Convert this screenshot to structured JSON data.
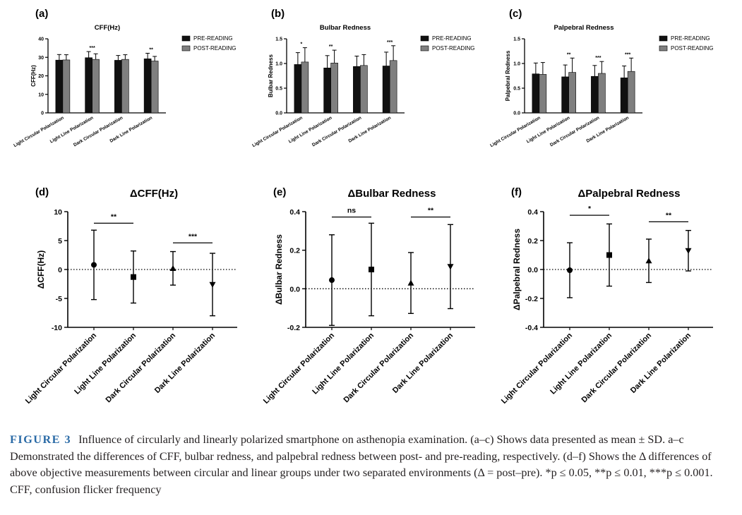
{
  "figure_label": "FIGURE 3",
  "caption_text": "Influence of circularly and linearly polarized smartphone on asthenopia examination. (a–c) Shows data presented as mean ± SD. a–c Demonstrated the differences of CFF, bulbar redness, and palpebral redness between post- and pre-reading, respectively. (d–f) Shows the Δ differences of above objective measurements between circular and linear groups under two separated environments (Δ = post–pre). *p ≤ 0.05, **p ≤ 0.01, ***p ≤ 0.001. CFF, confusion flicker frequency",
  "colors": {
    "pre": "#111111",
    "post": "#7f7f7f",
    "axis": "#000000"
  },
  "chart_data": [
    {
      "id": "a",
      "panel_label": "(a)",
      "type": "bar",
      "title": "CFF(Hz)",
      "ylabel": "CFF(Hz)",
      "xlabel": "",
      "categories": [
        "Light Circular Polarization",
        "Light Line Polarization",
        "Dark Circular Polarization",
        "Dark Line Polarization"
      ],
      "series": [
        {
          "name": "PRE-READING",
          "values": [
            28.5,
            29.8,
            28.4,
            29.2
          ],
          "err": [
            3.0,
            3.3,
            2.6,
            3.0
          ]
        },
        {
          "name": "POST-READING",
          "values": [
            28.6,
            28.9,
            28.9,
            28.0
          ],
          "err": [
            2.8,
            3.0,
            2.5,
            2.5
          ]
        }
      ],
      "significance": [
        "",
        "***",
        "",
        "**"
      ],
      "ylim": [
        0,
        40
      ],
      "yticks": [
        0,
        10,
        20,
        30,
        40
      ],
      "yticklabels": [
        "0",
        "10",
        "20",
        "30",
        "40"
      ],
      "legend": "top-right"
    },
    {
      "id": "b",
      "panel_label": "(b)",
      "type": "bar",
      "title": "Bulbar Redness",
      "ylabel": "Bulbar Redness",
      "xlabel": "",
      "categories": [
        "Light Circular Polarization",
        "Light Line Polarization",
        "Dark Circular Polarization",
        "Dark Line Polarization"
      ],
      "series": [
        {
          "name": "PRE-READING",
          "values": [
            0.98,
            0.91,
            0.94,
            0.95
          ],
          "err": [
            0.24,
            0.25,
            0.21,
            0.28
          ]
        },
        {
          "name": "POST-READING",
          "values": [
            1.03,
            1.01,
            0.96,
            1.06
          ],
          "err": [
            0.29,
            0.26,
            0.22,
            0.3
          ]
        }
      ],
      "significance": [
        "*",
        "**",
        "",
        "***"
      ],
      "ylim": [
        0,
        1.5
      ],
      "yticks": [
        0,
        0.5,
        1.0,
        1.5
      ],
      "yticklabels": [
        "0.0",
        "0.5",
        "1.0",
        "1.5"
      ],
      "legend": "top-right"
    },
    {
      "id": "c",
      "panel_label": "(c)",
      "type": "bar",
      "title": "Palpebral Redness",
      "ylabel": "Palpebral Redness",
      "xlabel": "",
      "categories": [
        "Light Circular Polarization",
        "Light Line Polarization",
        "Dark Circular Polarization",
        "Dark Line Polarization"
      ],
      "series": [
        {
          "name": "PRE-READING",
          "values": [
            0.79,
            0.73,
            0.74,
            0.71
          ],
          "err": [
            0.22,
            0.24,
            0.22,
            0.24
          ]
        },
        {
          "name": "POST-READING",
          "values": [
            0.78,
            0.82,
            0.8,
            0.84
          ],
          "err": [
            0.24,
            0.29,
            0.24,
            0.27
          ]
        }
      ],
      "significance": [
        "",
        "**",
        "***",
        "***"
      ],
      "ylim": [
        0,
        1.5
      ],
      "yticks": [
        0,
        0.5,
        1.0,
        1.5
      ],
      "yticklabels": [
        "0.0",
        "0.5",
        "1.0",
        "1.5"
      ],
      "legend": "top-right"
    },
    {
      "id": "d",
      "panel_label": "(d)",
      "type": "scatter",
      "title": "ΔCFF(Hz)",
      "ylabel": "ΔCFF(Hz)",
      "xlabel": "",
      "categories": [
        "Light Circular Polarization",
        "Light Line Polarization",
        "Dark Circular Polarization",
        "Dark Line Polarization"
      ],
      "values": [
        0.8,
        -1.3,
        0.2,
        -2.6
      ],
      "err": [
        6.0,
        4.5,
        2.9,
        5.4
      ],
      "markers": [
        "circle",
        "square",
        "triangle",
        "triangle-down"
      ],
      "ylim": [
        -10,
        10
      ],
      "yticks": [
        -10,
        -5,
        0,
        5,
        10
      ],
      "yticklabels": [
        "-10",
        "-5",
        "0",
        "5",
        "10"
      ],
      "comparisons": [
        {
          "from": 0,
          "to": 1,
          "label": "**",
          "y": 8.0
        },
        {
          "from": 2,
          "to": 3,
          "label": "***",
          "y": 4.6
        }
      ]
    },
    {
      "id": "e",
      "panel_label": "(e)",
      "type": "scatter",
      "title": "ΔBulbar Redness",
      "ylabel": "ΔBulbar Redness",
      "xlabel": "",
      "categories": [
        "Light Circular Polarization",
        "Light Line Polarization",
        "Dark Circular Polarization",
        "Dark Line Polarization"
      ],
      "values": [
        0.045,
        0.1,
        0.03,
        0.115
      ],
      "err": [
        0.235,
        0.24,
        0.158,
        0.218
      ],
      "markers": [
        "circle",
        "square",
        "triangle",
        "triangle-down"
      ],
      "ylim": [
        -0.2,
        0.4
      ],
      "yticks": [
        -0.2,
        0,
        0.2,
        0.4
      ],
      "yticklabels": [
        "-0.2",
        "0.0",
        "0.2",
        "0.4"
      ],
      "comparisons": [
        {
          "from": 0,
          "to": 1,
          "label": "ns",
          "y": 0.372
        },
        {
          "from": 2,
          "to": 3,
          "label": "**",
          "y": 0.372
        }
      ]
    },
    {
      "id": "f",
      "panel_label": "(f)",
      "type": "scatter",
      "title": "ΔPalpebral Redness",
      "ylabel": "ΔPalpebral Redness",
      "xlabel": "",
      "categories": [
        "Light Circular Polarization",
        "Light Line Polarization",
        "Dark Circular Polarization",
        "Dark Line Polarization"
      ],
      "values": [
        -0.005,
        0.1,
        0.06,
        0.13
      ],
      "err": [
        0.19,
        0.215,
        0.15,
        0.14
      ],
      "markers": [
        "circle",
        "square",
        "triangle",
        "triangle-down"
      ],
      "ylim": [
        -0.4,
        0.4
      ],
      "yticks": [
        -0.4,
        -0.2,
        0,
        0.2,
        0.4
      ],
      "yticklabels": [
        "-0.4",
        "-0.2",
        "0.0",
        "0.2",
        "0.4"
      ],
      "comparisons": [
        {
          "from": 0,
          "to": 1,
          "label": "*",
          "y": 0.375
        },
        {
          "from": 2,
          "to": 3,
          "label": "**",
          "y": 0.33
        }
      ]
    }
  ]
}
